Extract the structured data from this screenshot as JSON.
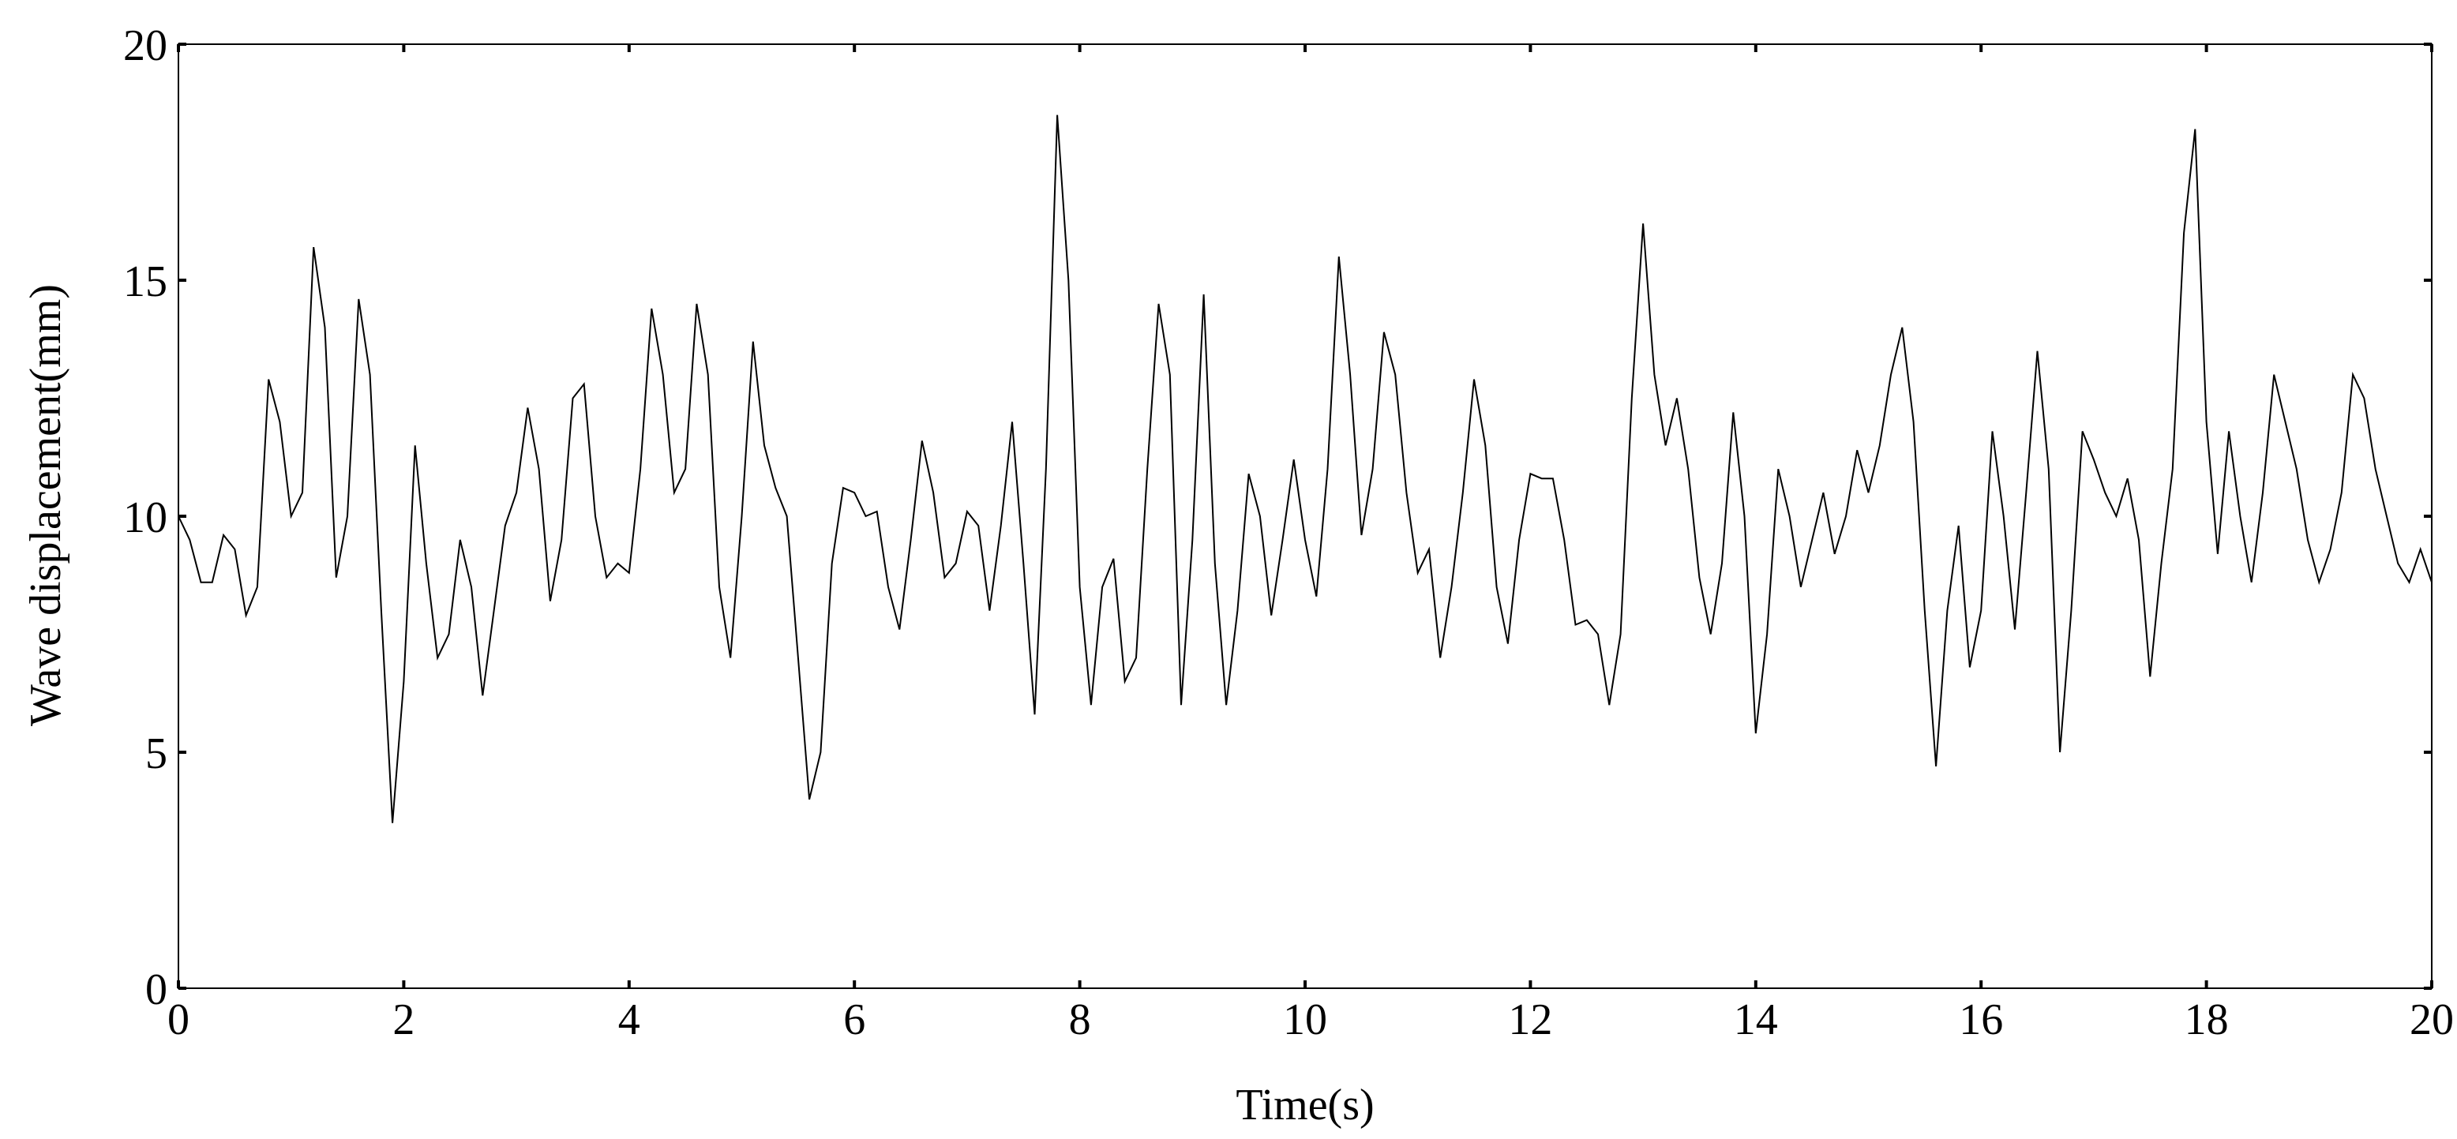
{
  "chart_data": {
    "type": "line",
    "xlabel": "Time(s)",
    "ylabel": "Wave displacement(mm)",
    "xlim": [
      0,
      20
    ],
    "xticks": [
      0,
      2,
      4,
      6,
      8,
      10,
      12,
      14,
      16,
      18,
      20
    ],
    "ylim": [
      0,
      20
    ],
    "yticks": [
      0,
      5,
      10,
      15,
      20
    ],
    "color": "#000000",
    "x": [
      0,
      0.1,
      0.2,
      0.3,
      0.4,
      0.5,
      0.6,
      0.7,
      0.8,
      0.9,
      1,
      1.1,
      1.2,
      1.3,
      1.4,
      1.5,
      1.6,
      1.7,
      1.8,
      1.9,
      2,
      2.1,
      2.2,
      2.3,
      2.4,
      2.5,
      2.6,
      2.7,
      2.8,
      2.9,
      3,
      3.1,
      3.2,
      3.3,
      3.4,
      3.5,
      3.6,
      3.7,
      3.8,
      3.9,
      4,
      4.1,
      4.2,
      4.3,
      4.4,
      4.5,
      4.6,
      4.7,
      4.8,
      4.9,
      5,
      5.1,
      5.2,
      5.3,
      5.4,
      5.5,
      5.6,
      5.7,
      5.8,
      5.9,
      6,
      6.1,
      6.2,
      6.3,
      6.4,
      6.5,
      6.6,
      6.7,
      6.8,
      6.9,
      7,
      7.1,
      7.2,
      7.3,
      7.4,
      7.5,
      7.6,
      7.7,
      7.8,
      7.9,
      8,
      8.1,
      8.2,
      8.3,
      8.4,
      8.5,
      8.6,
      8.7,
      8.8,
      8.9,
      9,
      9.1,
      9.2,
      9.3,
      9.4,
      9.5,
      9.6,
      9.7,
      9.8,
      9.9,
      10,
      10.1,
      10.2,
      10.3,
      10.4,
      10.5,
      10.6,
      10.7,
      10.8,
      10.9,
      11,
      11.1,
      11.2,
      11.3,
      11.4,
      11.5,
      11.6,
      11.7,
      11.8,
      11.9,
      12,
      12.1,
      12.2,
      12.3,
      12.4,
      12.5,
      12.6,
      12.7,
      12.8,
      12.9,
      13,
      13.1,
      13.2,
      13.3,
      13.4,
      13.5,
      13.6,
      13.7,
      13.8,
      13.9,
      14,
      14.1,
      14.2,
      14.3,
      14.4,
      14.5,
      14.6,
      14.7,
      14.8,
      14.9,
      15,
      15.1,
      15.2,
      15.3,
      15.4,
      15.5,
      15.6,
      15.7,
      15.8,
      15.9,
      16,
      16.1,
      16.2,
      16.3,
      16.4,
      16.5,
      16.6,
      16.7,
      16.8,
      16.9,
      17,
      17.1,
      17.2,
      17.3,
      17.4,
      17.5,
      17.6,
      17.7,
      17.8,
      17.9,
      18,
      18.1,
      18.2,
      18.3,
      18.4,
      18.5,
      18.6,
      18.7,
      18.8,
      18.9,
      19,
      19.1,
      19.2,
      19.3,
      19.4,
      19.5,
      19.6,
      19.7,
      19.8,
      19.9,
      20
    ],
    "values": [
      10,
      9.5,
      8.6,
      8.6,
      9.6,
      9.3,
      7.9,
      8.5,
      12.9,
      12,
      10,
      10.5,
      15.7,
      14,
      8.7,
      10,
      14.6,
      13,
      8,
      3.5,
      6.5,
      11.5,
      9,
      7,
      7.5,
      9.5,
      8.5,
      6.2,
      8,
      9.8,
      10.5,
      12.3,
      11,
      8.2,
      9.5,
      12.5,
      12.8,
      10,
      8.7,
      9,
      8.8,
      11,
      14.4,
      13,
      10.5,
      11,
      14.5,
      13,
      8.5,
      7,
      10,
      13.7,
      11.5,
      10.6,
      10,
      7,
      4,
      5,
      9,
      10.6,
      10.5,
      10,
      10.1,
      8.5,
      7.6,
      9.5,
      11.6,
      10.5,
      8.7,
      9,
      10.1,
      9.8,
      8,
      9.8,
      12,
      9,
      5.8,
      11,
      18.5,
      15,
      8.5,
      6,
      8.5,
      9.1,
      6.5,
      7,
      11,
      14.5,
      13,
      6,
      9.5,
      14.7,
      9,
      6,
      8,
      10.9,
      10,
      7.9,
      9.5,
      11.2,
      9.5,
      8.3,
      11,
      15.5,
      13,
      9.6,
      11,
      13.9,
      13,
      10.5,
      8.8,
      9.3,
      7,
      8.5,
      10.5,
      12.9,
      11.5,
      8.5,
      7.3,
      9.5,
      10.9,
      10.8,
      10.8,
      9.5,
      7.7,
      7.8,
      7.5,
      6,
      7.5,
      12.5,
      16.2,
      13,
      11.5,
      12.5,
      11,
      8.7,
      7.5,
      9,
      12.2,
      10,
      5.4,
      7.5,
      11,
      10,
      8.5,
      9.5,
      10.5,
      9.2,
      10,
      11.4,
      10.5,
      11.5,
      13,
      14,
      12,
      8,
      4.7,
      8,
      9.8,
      6.8,
      8,
      11.8,
      10,
      7.6,
      10.5,
      13.5,
      11,
      5,
      8,
      11.8,
      11.2,
      10.5,
      10,
      10.8,
      9.5,
      6.6,
      9,
      11,
      16,
      18.2,
      12,
      9.2,
      11.8,
      10,
      8.6,
      10.5,
      13,
      12,
      11,
      9.5,
      8.6,
      9.3,
      10.5,
      13,
      12.5,
      11,
      10,
      9,
      8.6,
      9.3,
      8.6
    ]
  }
}
